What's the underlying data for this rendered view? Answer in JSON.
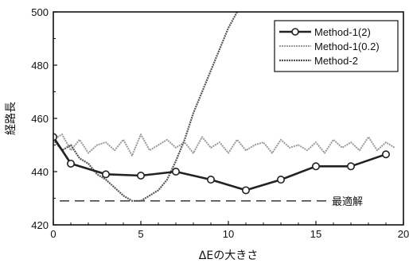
{
  "chart_data": {
    "type": "line",
    "title": "",
    "xlabel": "ΔEの大きさ",
    "ylabel": "経路長",
    "xlim": [
      0,
      20
    ],
    "ylim": [
      420,
      500
    ],
    "xticks": [
      0,
      5,
      10,
      15,
      20
    ],
    "yticks": [
      420,
      440,
      460,
      480,
      500
    ],
    "grid": false,
    "legend_placement": "top-right",
    "reference_line": {
      "y": 429,
      "label": "最適解",
      "style": "dashed"
    },
    "series": [
      {
        "name": "Method-1(2)",
        "color": "#222222",
        "marker": "circle",
        "x": [
          0,
          1,
          3,
          5,
          7,
          9,
          11,
          13,
          15,
          17,
          19
        ],
        "y": [
          453,
          443,
          439,
          438.5,
          440,
          437,
          433,
          437,
          442,
          442,
          446.5
        ]
      },
      {
        "name": "Method-1(0.2)",
        "color": "#9a9a9a",
        "marker": "none",
        "x": [
          0,
          0.5,
          1,
          1.5,
          2,
          2.5,
          3,
          3.5,
          4,
          4.5,
          5,
          5.5,
          6,
          6.5,
          7,
          7.5,
          8,
          8.5,
          9,
          9.5,
          10,
          10.5,
          11,
          11.5,
          12,
          12.5,
          13,
          13.5,
          14,
          14.5,
          15,
          15.5,
          16,
          16.5,
          17,
          17.5,
          18,
          18.5,
          19,
          19.5
        ],
        "y": [
          452,
          454,
          448,
          452,
          447,
          450,
          451,
          448,
          452,
          446,
          454,
          448,
          450,
          452,
          449,
          451,
          447,
          453,
          449,
          451,
          447,
          452,
          448,
          450,
          451,
          447,
          452,
          449,
          450,
          448,
          451,
          447,
          452,
          449,
          451,
          448,
          453,
          448,
          451,
          449
        ]
      },
      {
        "name": "Method-2",
        "color": "#555555",
        "marker": "none",
        "x": [
          0,
          0.5,
          1,
          1.5,
          2,
          2.5,
          3,
          3.5,
          4,
          4.5,
          5,
          5.5,
          6,
          6.5,
          7,
          7.5,
          8,
          8.5,
          9,
          9.5,
          10,
          10.5
        ],
        "y": [
          452,
          448,
          450,
          445,
          443,
          439,
          437,
          434,
          431,
          429,
          429,
          431,
          433,
          437,
          444,
          452,
          462,
          470,
          478,
          486,
          494,
          500
        ]
      }
    ]
  }
}
